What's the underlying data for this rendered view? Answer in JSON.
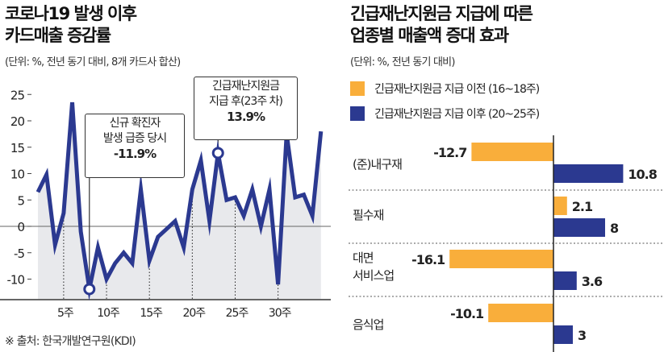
{
  "colors": {
    "line": "#2b3990",
    "before": "#f9ae3b",
    "after": "#2b3990",
    "area": "#e8e9ec"
  },
  "source": "※ 출처: 한국개발연구원(KDI)",
  "chart_data": [
    {
      "type": "line",
      "title": [
        "코로나19 발생 이후",
        "카드매출 증감률"
      ],
      "subtitle": "(단위: %, 전년 동기 대비, 8개 카드사 합산)",
      "x": [
        2,
        3,
        4,
        5,
        6,
        7,
        8,
        9,
        10,
        11,
        12,
        13,
        14,
        15,
        16,
        17,
        18,
        19,
        20,
        21,
        22,
        23,
        24,
        25,
        26,
        27,
        28,
        29,
        30,
        31,
        32,
        33,
        34,
        35
      ],
      "values": [
        6.5,
        9.8,
        -3.5,
        2.5,
        23.5,
        -1,
        -11.9,
        -4,
        -10,
        -7,
        -5,
        -7,
        7,
        -6.5,
        -2,
        -0.5,
        1,
        -4,
        7,
        12.5,
        1,
        13.9,
        5,
        5.5,
        2,
        7,
        0,
        7,
        -11,
        17.5,
        5.5,
        6,
        2,
        18
      ],
      "yticks": [
        "25",
        "20",
        "15",
        "10",
        "5",
        "0",
        "-5",
        "-10"
      ],
      "ytick_values": [
        25,
        20,
        15,
        10,
        5,
        0,
        -5,
        -10
      ],
      "xticks": [
        "5주",
        "10주",
        "15주",
        "20주",
        "25주",
        "30주"
      ],
      "xtick_values": [
        5,
        10,
        15,
        20,
        25,
        30
      ],
      "ylim": [
        -14,
        27
      ],
      "xlim": [
        1,
        36
      ],
      "annotations": [
        {
          "week": 8,
          "lines": [
            "신규 확진자",
            "발생 급증 당시"
          ],
          "value": "-11.9%"
        },
        {
          "week": 23,
          "lines": [
            "긴급재난지원금",
            "지급 후(23주 차)"
          ],
          "value": "13.9%"
        }
      ]
    },
    {
      "type": "bar",
      "title": [
        "긴급재난지원금 지급에 따른",
        "업종별 매출액 증대 효과"
      ],
      "subtitle": "(단위: %, 전년 동기 대비)",
      "categories": [
        [
          "(준)내구재"
        ],
        [
          "필수재"
        ],
        [
          "대면",
          "서비스업"
        ],
        [
          "음식업"
        ]
      ],
      "series": [
        {
          "name": "긴급재난지원금 지급 이전 (16~18주)",
          "values": [
            -12.7,
            2.1,
            -16.1,
            -10.1
          ],
          "labels": [
            "-12.7",
            "2.1",
            "-16.1",
            "-10.1"
          ]
        },
        {
          "name": "긴급재난지원금 지급 이후 (20~25주)",
          "values": [
            10.8,
            8,
            3.6,
            3
          ],
          "labels": [
            "10.8",
            "8",
            "3.6",
            "3"
          ]
        }
      ]
    }
  ]
}
